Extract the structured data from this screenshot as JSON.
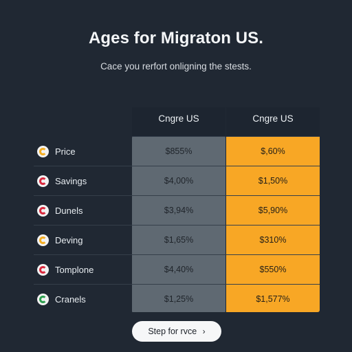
{
  "header": {
    "title": "Ages for Migraton US.",
    "subtitle": "Cace you rerfort onligning the stests."
  },
  "table": {
    "columns": [
      "Cngre US",
      "Cngre US"
    ],
    "rows": [
      {
        "label": "Price",
        "icon": "c-badge-icon",
        "icon_color": "#f4ad22",
        "value_1": "$855%",
        "value_2": "$,60%"
      },
      {
        "label": "Savings",
        "icon": "c-badge-icon",
        "icon_color": "#d9293e",
        "value_1": "$4,00%",
        "value_2": "$1,50%"
      },
      {
        "label": "Dunels",
        "icon": "c-badge-icon",
        "icon_color": "#d9293e",
        "value_1": "$3,94%",
        "value_2": "$5,90%"
      },
      {
        "label": "Deving",
        "icon": "c-badge-icon",
        "icon_color": "#f4ad22",
        "value_1": "$1,65%",
        "value_2": "$310%"
      },
      {
        "label": "Tomplone",
        "icon": "c-badge-icon",
        "icon_color": "#d9293e",
        "value_1": "$4,40%",
        "value_2": "$550%"
      },
      {
        "label": "Cranels",
        "icon": "c-badge-icon",
        "icon_color": "#2e9f4f",
        "value_1": "$1,25%",
        "value_2": "$1,577%"
      }
    ]
  },
  "cta": {
    "label": "Step for rvce",
    "icon": "chevron-right-icon"
  },
  "colors": {
    "background": "#202833",
    "us_column": "#5f6972",
    "accent_column": "#f8a725",
    "button": "#f6f7f8"
  }
}
